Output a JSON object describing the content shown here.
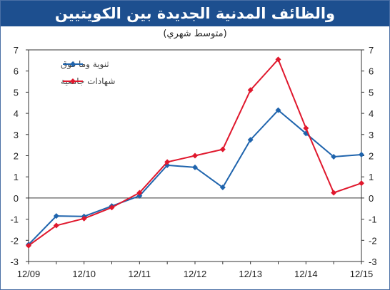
{
  "header": {
    "title": "والظائف المدنية الجديدة بين الكويتيين",
    "subtitle": "(متوسط شهري)"
  },
  "colors": {
    "title_bg": "#1d4f8f",
    "series1": "#1f64ad",
    "series2": "#e0182d"
  },
  "chart_data": {
    "type": "line",
    "title": "والظائف المدنية الجديدة بين الكويتيين",
    "subtitle": "(متوسط شهري)",
    "x_tick_labels": [
      "12/09",
      "12/10",
      "12/11",
      "12/12",
      "12/13",
      "12/14",
      "12/15"
    ],
    "y_ticks": [
      -3,
      -2,
      -1,
      0,
      1,
      2,
      3,
      4,
      5,
      6,
      7
    ],
    "y_tick_labels": [
      "-3",
      "-2",
      "-1",
      "0",
      "1",
      "2",
      "3",
      "4",
      "5",
      "6",
      "7"
    ],
    "ylim": [
      -3,
      7
    ],
    "x": [
      "12/09",
      "06/10",
      "12/10",
      "06/11",
      "12/11",
      "06/12",
      "12/12",
      "06/13",
      "12/13",
      "06/14",
      "12/14",
      "06/15",
      "12/15"
    ],
    "series": [
      {
        "name": "ثنوية وما فوق",
        "values": [
          -2.2,
          -0.85,
          -0.87,
          -0.38,
          0.1,
          1.55,
          1.45,
          0.5,
          2.75,
          4.15,
          3.05,
          1.95,
          2.05
        ]
      },
      {
        "name": "شهادات جامعية",
        "values": [
          -2.25,
          -1.3,
          -0.97,
          -0.45,
          0.25,
          1.7,
          2.0,
          2.3,
          5.1,
          6.55,
          3.3,
          0.25,
          0.7
        ]
      }
    ],
    "legend_position": "top-left",
    "grid": false
  }
}
